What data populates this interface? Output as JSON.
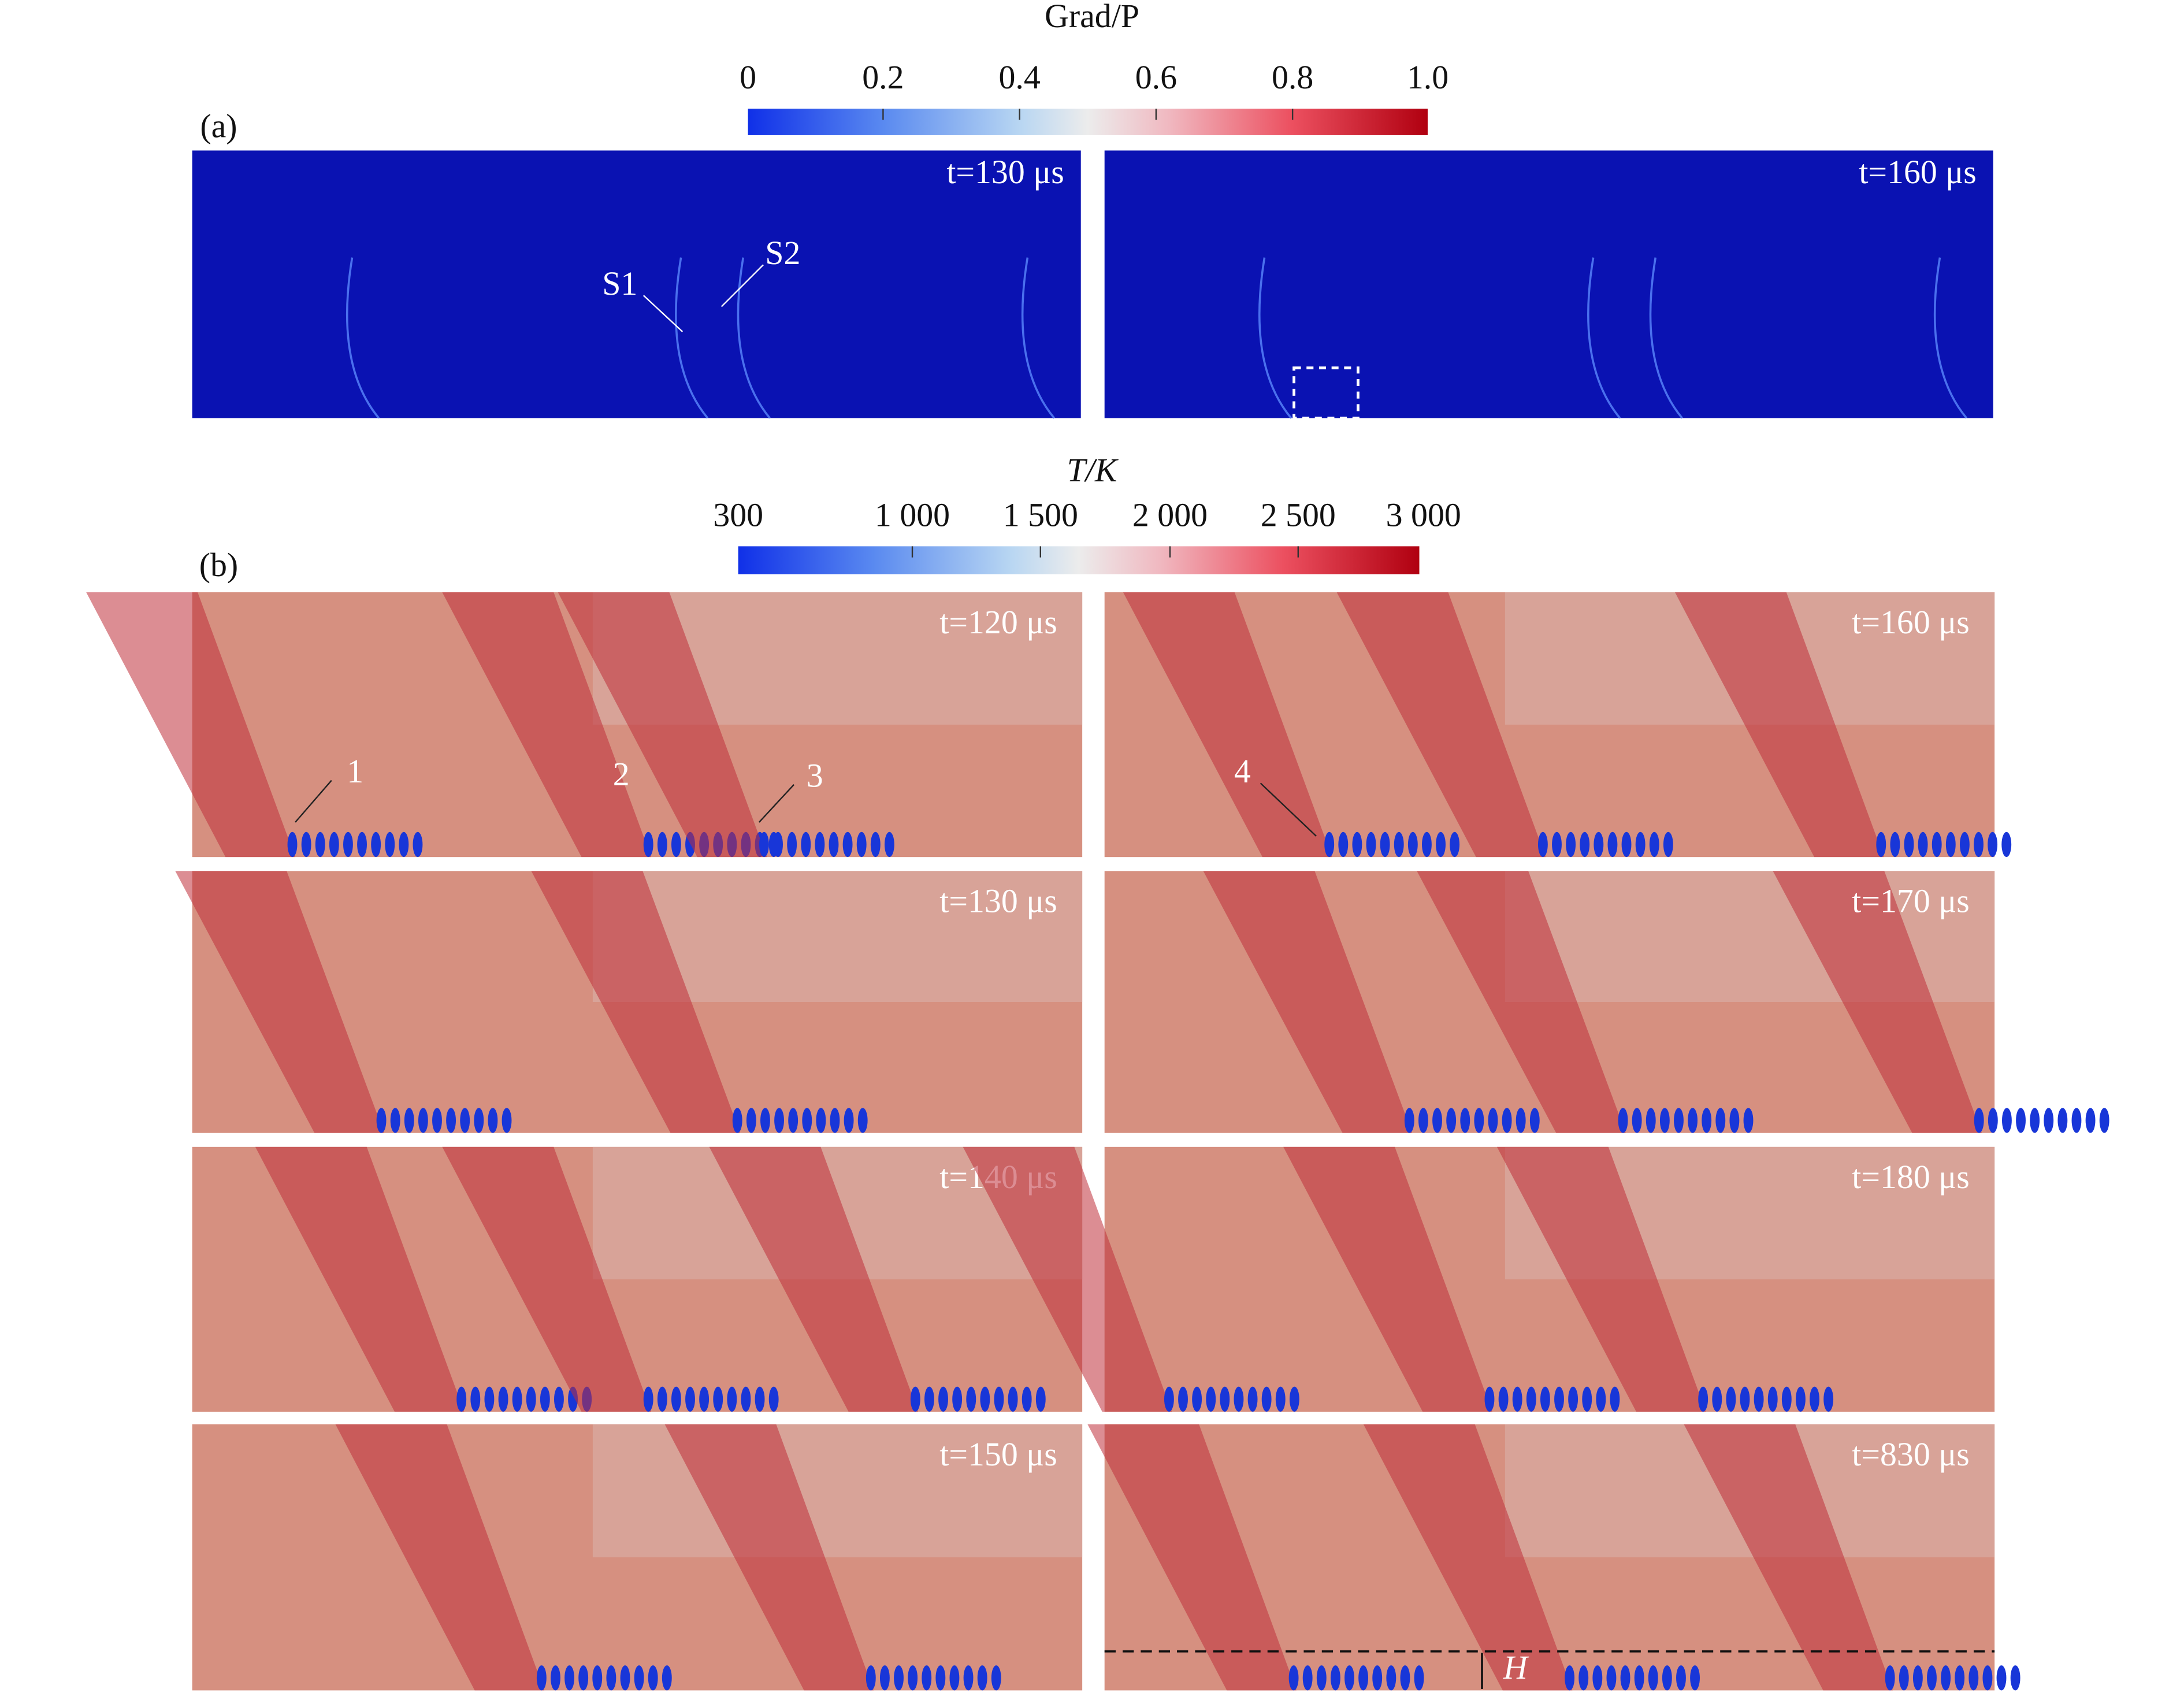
{
  "panel_a": {
    "label": "(a)",
    "colorbar": {
      "title": "Grad/P",
      "ticks": [
        "0",
        "0.2",
        "0.4",
        "0.6",
        "0.8",
        "1.0"
      ]
    },
    "frames": [
      {
        "time": "t=130 μs",
        "annotations": [
          "S1",
          "S2"
        ]
      },
      {
        "time": "t=160 μs"
      }
    ]
  },
  "panel_b": {
    "label": "(b)",
    "colorbar": {
      "title": "T/K",
      "ticks": [
        "300",
        "1 000",
        "1 500",
        "2 000",
        "2 500",
        "3 000"
      ]
    },
    "frames": [
      {
        "time": "t=120 μs",
        "annotations": [
          "1",
          "2",
          "3"
        ]
      },
      {
        "time": "t=160 μs",
        "annotations": [
          "4"
        ]
      },
      {
        "time": "t=130 μs"
      },
      {
        "time": "t=170 μs"
      },
      {
        "time": "t=140 μs"
      },
      {
        "time": "t=180 μs"
      },
      {
        "time": "t=150 μs"
      },
      {
        "time": "t=830 μs",
        "annotations": [
          "H"
        ]
      }
    ]
  }
}
